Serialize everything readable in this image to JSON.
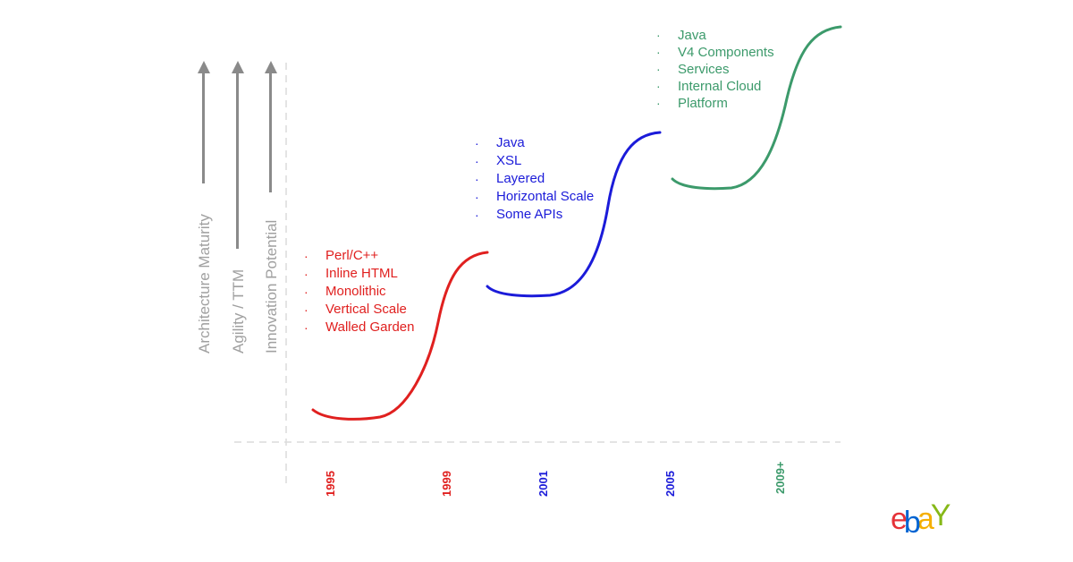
{
  "axes": [
    {
      "label": "Architecture Maturity"
    },
    {
      "label": "Agility / TTM"
    },
    {
      "label": "Innovation Potential"
    }
  ],
  "stages": [
    {
      "color": "#e0201f",
      "items": [
        "Perl/C++",
        "Inline HTML",
        "Monolithic",
        "Vertical Scale",
        "Walled Garden"
      ]
    },
    {
      "color": "#1b1bd9",
      "items": [
        "Java",
        "XSL",
        "Layered",
        "Horizontal Scale",
        "Some APIs"
      ]
    },
    {
      "color": "#3c9a6b",
      "items": [
        "Java",
        "V4 Components",
        "Services",
        "Internal Cloud",
        "Platform"
      ]
    }
  ],
  "years": [
    {
      "label": "1995",
      "color": "#e0201f"
    },
    {
      "label": "1999",
      "color": "#e0201f"
    },
    {
      "label": "2001",
      "color": "#1b1bd9"
    },
    {
      "label": "2005",
      "color": "#1b1bd9"
    },
    {
      "label": "2009+",
      "color": "#3c9a6b"
    }
  ],
  "logo": {
    "letters": [
      {
        "char": "e",
        "color": "#e53238"
      },
      {
        "char": "b",
        "color": "#0064d2"
      },
      {
        "char": "a",
        "color": "#f5af02"
      },
      {
        "char": "Y",
        "color": "#86b817"
      }
    ]
  }
}
